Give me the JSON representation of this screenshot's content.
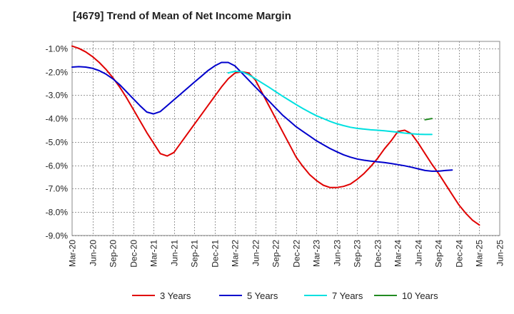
{
  "chart_data": {
    "type": "line",
    "title": "[4679]  Trend of Mean of Net Income Margin",
    "xlabel": "",
    "ylabel": "",
    "y_tick_labels": [
      "-1.0%",
      "-2.0%",
      "-3.0%",
      "-4.0%",
      "-5.0%",
      "-6.0%",
      "-7.0%",
      "-8.0%",
      "-9.0%"
    ],
    "y_ticks": [
      -1,
      -2,
      -3,
      -4,
      -5,
      -6,
      -7,
      -8,
      -9
    ],
    "ylim": [
      -9.0,
      -0.7
    ],
    "x_tick_labels": [
      "Mar-20",
      "Jun-20",
      "Sep-20",
      "Dec-20",
      "Mar-21",
      "Jun-21",
      "Sep-21",
      "Dec-21",
      "Mar-22",
      "Jun-22",
      "Sep-22",
      "Dec-22",
      "Mar-23",
      "Jun-23",
      "Sep-23",
      "Dec-23",
      "Mar-24",
      "Jun-24",
      "Sep-24",
      "Dec-24",
      "Mar-25",
      "Jun-25"
    ],
    "grid": true,
    "legend_position": "bottom",
    "series": [
      {
        "name": "3 Years",
        "color": "#e00000",
        "points": [
          [
            "Mar-20",
            -0.9
          ],
          [
            "Apr-20",
            -1.0
          ],
          [
            "May-20",
            -1.15
          ],
          [
            "Jun-20",
            -1.35
          ],
          [
            "Jul-20",
            -1.6
          ],
          [
            "Aug-20",
            -1.9
          ],
          [
            "Sep-20",
            -2.25
          ],
          [
            "Oct-20",
            -2.65
          ],
          [
            "Nov-20",
            -3.1
          ],
          [
            "Dec-20",
            -3.6
          ],
          [
            "Jan-21",
            -4.1
          ],
          [
            "Feb-21",
            -4.6
          ],
          [
            "Mar-21",
            -5.05
          ],
          [
            "Apr-21",
            -5.5
          ],
          [
            "May-21",
            -5.6
          ],
          [
            "Jun-21",
            -5.45
          ],
          [
            "Jul-21",
            -5.05
          ],
          [
            "Aug-21",
            -4.65
          ],
          [
            "Sep-21",
            -4.25
          ],
          [
            "Oct-21",
            -3.85
          ],
          [
            "Nov-21",
            -3.45
          ],
          [
            "Dec-21",
            -3.05
          ],
          [
            "Jan-22",
            -2.65
          ],
          [
            "Feb-22",
            -2.3
          ],
          [
            "Mar-22",
            -2.05
          ],
          [
            "Apr-22",
            -2.0
          ],
          [
            "May-22",
            -2.05
          ],
          [
            "Jun-22",
            -2.35
          ],
          [
            "Jul-22",
            -2.9
          ],
          [
            "Aug-22",
            -3.45
          ],
          [
            "Sep-22",
            -4.0
          ],
          [
            "Oct-22",
            -4.55
          ],
          [
            "Nov-22",
            -5.1
          ],
          [
            "Dec-22",
            -5.65
          ],
          [
            "Jan-23",
            -6.05
          ],
          [
            "Feb-23",
            -6.4
          ],
          [
            "Mar-23",
            -6.65
          ],
          [
            "Apr-23",
            -6.85
          ],
          [
            "May-23",
            -6.95
          ],
          [
            "Jun-23",
            -6.95
          ],
          [
            "Jul-23",
            -6.9
          ],
          [
            "Aug-23",
            -6.8
          ],
          [
            "Sep-23",
            -6.6
          ],
          [
            "Oct-23",
            -6.35
          ],
          [
            "Nov-23",
            -6.05
          ],
          [
            "Dec-23",
            -5.7
          ],
          [
            "Jan-24",
            -5.3
          ],
          [
            "Feb-24",
            -4.95
          ],
          [
            "Mar-24",
            -4.55
          ],
          [
            "Apr-24",
            -4.5
          ],
          [
            "May-24",
            -4.65
          ],
          [
            "Jun-24",
            -5.05
          ],
          [
            "Jul-24",
            -5.5
          ],
          [
            "Aug-24",
            -5.95
          ],
          [
            "Sep-24",
            -6.35
          ],
          [
            "Oct-24",
            -6.8
          ],
          [
            "Nov-24",
            -7.25
          ],
          [
            "Dec-24",
            -7.7
          ],
          [
            "Jan-25",
            -8.05
          ],
          [
            "Feb-25",
            -8.35
          ],
          [
            "Mar-25",
            -8.55
          ]
        ]
      },
      {
        "name": "5 Years",
        "color": "#0000cc",
        "points": [
          [
            "Mar-20",
            -1.8
          ],
          [
            "Apr-20",
            -1.78
          ],
          [
            "May-20",
            -1.8
          ],
          [
            "Jun-20",
            -1.85
          ],
          [
            "Jul-20",
            -1.95
          ],
          [
            "Aug-20",
            -2.1
          ],
          [
            "Sep-20",
            -2.3
          ],
          [
            "Oct-20",
            -2.55
          ],
          [
            "Nov-20",
            -2.85
          ],
          [
            "Dec-20",
            -3.15
          ],
          [
            "Jan-21",
            -3.45
          ],
          [
            "Feb-21",
            -3.72
          ],
          [
            "Mar-21",
            -3.8
          ],
          [
            "Apr-21",
            -3.7
          ],
          [
            "May-21",
            -3.45
          ],
          [
            "Jun-21",
            -3.2
          ],
          [
            "Jul-21",
            -2.95
          ],
          [
            "Aug-21",
            -2.7
          ],
          [
            "Sep-21",
            -2.45
          ],
          [
            "Oct-21",
            -2.2
          ],
          [
            "Nov-21",
            -1.95
          ],
          [
            "Dec-21",
            -1.75
          ],
          [
            "Jan-22",
            -1.6
          ],
          [
            "Feb-22",
            -1.6
          ],
          [
            "Mar-22",
            -1.75
          ],
          [
            "Apr-22",
            -2.05
          ],
          [
            "May-22",
            -2.35
          ],
          [
            "Jun-22",
            -2.65
          ],
          [
            "Jul-22",
            -2.95
          ],
          [
            "Aug-22",
            -3.25
          ],
          [
            "Sep-22",
            -3.55
          ],
          [
            "Oct-22",
            -3.85
          ],
          [
            "Nov-22",
            -4.1
          ],
          [
            "Dec-22",
            -4.35
          ],
          [
            "Jan-23",
            -4.55
          ],
          [
            "Feb-23",
            -4.75
          ],
          [
            "Mar-23",
            -4.95
          ],
          [
            "Apr-23",
            -5.12
          ],
          [
            "May-23",
            -5.28
          ],
          [
            "Jun-23",
            -5.42
          ],
          [
            "Jul-23",
            -5.55
          ],
          [
            "Aug-23",
            -5.65
          ],
          [
            "Sep-23",
            -5.73
          ],
          [
            "Oct-23",
            -5.78
          ],
          [
            "Nov-23",
            -5.82
          ],
          [
            "Dec-23",
            -5.85
          ],
          [
            "Jan-24",
            -5.88
          ],
          [
            "Feb-24",
            -5.92
          ],
          [
            "Mar-24",
            -5.97
          ],
          [
            "Apr-24",
            -6.02
          ],
          [
            "May-24",
            -6.08
          ],
          [
            "Jun-24",
            -6.15
          ],
          [
            "Jul-24",
            -6.22
          ],
          [
            "Aug-24",
            -6.25
          ],
          [
            "Sep-24",
            -6.25
          ],
          [
            "Oct-24",
            -6.22
          ],
          [
            "Nov-24",
            -6.2
          ]
        ]
      },
      {
        "name": "7 Years",
        "color": "#00e0e0",
        "points": [
          [
            "Feb-22",
            -2.05
          ],
          [
            "Mar-22",
            -1.98
          ],
          [
            "Apr-22",
            -2.0
          ],
          [
            "May-22",
            -2.12
          ],
          [
            "Jun-22",
            -2.3
          ],
          [
            "Jul-22",
            -2.48
          ],
          [
            "Aug-22",
            -2.66
          ],
          [
            "Sep-22",
            -2.85
          ],
          [
            "Oct-22",
            -3.04
          ],
          [
            "Nov-22",
            -3.22
          ],
          [
            "Dec-22",
            -3.4
          ],
          [
            "Jan-23",
            -3.57
          ],
          [
            "Feb-23",
            -3.73
          ],
          [
            "Mar-23",
            -3.88
          ],
          [
            "Apr-23",
            -4.0
          ],
          [
            "May-23",
            -4.12
          ],
          [
            "Jun-23",
            -4.22
          ],
          [
            "Jul-23",
            -4.3
          ],
          [
            "Aug-23",
            -4.37
          ],
          [
            "Sep-23",
            -4.42
          ],
          [
            "Oct-23",
            -4.45
          ],
          [
            "Nov-23",
            -4.48
          ],
          [
            "Dec-23",
            -4.5
          ],
          [
            "Jan-24",
            -4.52
          ],
          [
            "Feb-24",
            -4.55
          ],
          [
            "Mar-24",
            -4.58
          ],
          [
            "Apr-24",
            -4.62
          ],
          [
            "May-24",
            -4.65
          ],
          [
            "Jun-24",
            -4.67
          ],
          [
            "Jul-24",
            -4.68
          ],
          [
            "Aug-24",
            -4.68
          ]
        ]
      },
      {
        "name": "10 Years",
        "color": "#228b22",
        "points": [
          [
            "Jul-24",
            -4.05
          ],
          [
            "Aug-24",
            -4.0
          ]
        ]
      }
    ]
  }
}
